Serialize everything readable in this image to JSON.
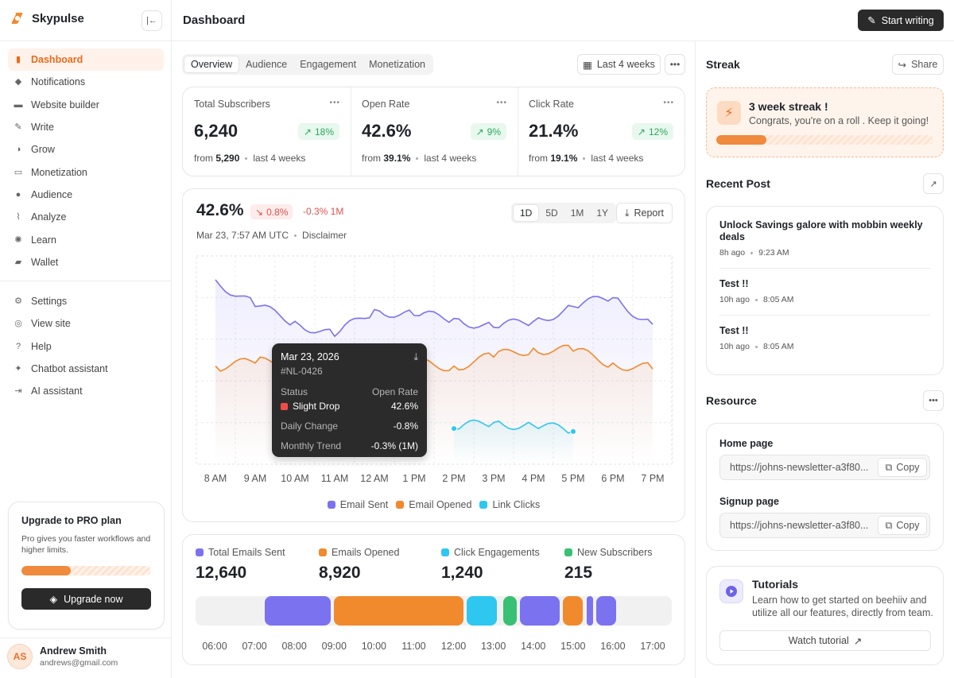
{
  "app": {
    "name": "Skypulse"
  },
  "sidebar": {
    "primary": [
      {
        "label": "Dashboard",
        "icon": "bar-chart-icon",
        "glyph": "▮",
        "active": true
      },
      {
        "label": "Notifications",
        "icon": "bell-icon",
        "glyph": "◆"
      },
      {
        "label": "Website builder",
        "icon": "monitor-icon",
        "glyph": "▬"
      },
      {
        "label": "Write",
        "icon": "pen-icon",
        "glyph": "✎"
      },
      {
        "label": "Grow",
        "icon": "grow-icon",
        "glyph": "◑"
      },
      {
        "label": "Monetization",
        "icon": "money-icon",
        "glyph": "▭"
      },
      {
        "label": "Audience",
        "icon": "users-icon",
        "glyph": "●"
      },
      {
        "label": "Analyze",
        "icon": "analyze-icon",
        "glyph": "⌇"
      },
      {
        "label": "Learn",
        "icon": "bulb-icon",
        "glyph": "✺"
      },
      {
        "label": "Wallet",
        "icon": "wallet-icon",
        "glyph": "▰"
      }
    ],
    "secondary": [
      {
        "label": "Settings",
        "icon": "gear-icon",
        "glyph": "⚙"
      },
      {
        "label": "View site",
        "icon": "globe-icon",
        "glyph": "◎"
      },
      {
        "label": "Help",
        "icon": "help-icon",
        "glyph": "?"
      },
      {
        "label": "Chatbot assistant",
        "icon": "sparkle-icon",
        "glyph": "✦"
      },
      {
        "label": "AI assistant",
        "icon": "sign-in-icon",
        "glyph": "⇥"
      }
    ],
    "upgrade": {
      "title": "Upgrade to PRO plan",
      "description": "Pro gives you faster workflows and higher limits.",
      "progress": 0.38,
      "button": "Upgrade now"
    },
    "user": {
      "initials": "AS",
      "name": "Andrew Smith",
      "email": "andrews@gmail.com"
    }
  },
  "header": {
    "title": "Dashboard",
    "start_writing": "Start writing"
  },
  "tabs": [
    "Overview",
    "Audience",
    "Engagement",
    "Monetization"
  ],
  "period": "Last 4 weeks",
  "stats": [
    {
      "label": "Total Subscribers",
      "value": "6,240",
      "change": "18%",
      "from_label": "from",
      "from": "5,290",
      "period": "last 4 weeks"
    },
    {
      "label": "Open Rate",
      "value": "42.6%",
      "change": "9%",
      "from_label": "from",
      "from": "39.1%",
      "period": "last 4 weeks"
    },
    {
      "label": "Click Rate",
      "value": "21.4%",
      "change": "12%",
      "from_label": "from",
      "from": "19.1%",
      "period": "last 4 weeks"
    }
  ],
  "chart": {
    "value": "42.6%",
    "change": "0.8%",
    "trend": "-0.3% 1M",
    "timestamp": "Mar 23, 7:57 AM UTC",
    "disclaimer": "Disclaimer",
    "ranges": [
      "1D",
      "5D",
      "1M",
      "1Y"
    ],
    "active_range": "1D",
    "report": "Report",
    "tooltip": {
      "date": "Mar 23, 2026",
      "id": "#NL-0426",
      "status_label": "Status",
      "status_col_label": "Open Rate",
      "status": "Slight Drop",
      "status_value": "42.6%",
      "daily_label": "Daily Change",
      "daily_value": "-0.8%",
      "monthly_label": "Monthly Trend",
      "monthly_value": "-0.3% (1M)"
    },
    "colors": {
      "email_sent": "#7b72f0",
      "email_opened": "#f08a2c",
      "link_clicks": "#2ec7ef",
      "status_drop": "#f04b4b"
    }
  },
  "chart_data": {
    "type": "line",
    "x": [
      "8 AM",
      "9 AM",
      "10 AM",
      "11 AM",
      "12 AM",
      "1 PM",
      "2 PM",
      "3 PM",
      "4 PM",
      "5 PM",
      "6 PM",
      "7 PM"
    ],
    "series": [
      {
        "name": "Email Sent",
        "values": [
          6.2,
          5.3,
          4.8,
          4.3,
          5.2,
          5.0,
          4.9,
          4.6,
          4.8,
          5.3,
          5.6,
          4.7
        ]
      },
      {
        "name": "Email Opened",
        "values": [
          3.3,
          3.4,
          3.5,
          3.6,
          3.5,
          3.4,
          3.3,
          3.6,
          3.9,
          3.8,
          3.4,
          3.2
        ]
      },
      {
        "name": "Link Clicks",
        "values": [
          null,
          null,
          null,
          null,
          null,
          null,
          1.2,
          1.4,
          1.3,
          1.1,
          null,
          null
        ]
      }
    ],
    "ylim": [
      0,
      7
    ],
    "grid": true,
    "legend": "bottom"
  },
  "summary": [
    {
      "label": "Total Emails Sent",
      "value": "12,640",
      "color": "#7b72f0"
    },
    {
      "label": "Emails Opened",
      "value": "8,920",
      "color": "#f08a2c"
    },
    {
      "label": "Click Engagements",
      "value": "1,240",
      "color": "#2ec7ef"
    },
    {
      "label": "New Subscribers",
      "value": "215",
      "color": "#38c172"
    }
  ],
  "timeline": {
    "labels": [
      "06:00",
      "07:00",
      "08:00",
      "09:00",
      "10:00",
      "11:00",
      "12:00",
      "13:00",
      "14:00",
      "15:00",
      "16:00",
      "17:00"
    ],
    "blocks": [
      {
        "start": "07:15",
        "end": "08:55",
        "series": "Total Emails Sent",
        "color": "#7b72f0"
      },
      {
        "start": "09:00",
        "end": "12:15",
        "series": "Emails Opened",
        "color": "#f08a2c"
      },
      {
        "start": "12:20",
        "end": "13:05",
        "series": "Click Engagements",
        "color": "#2ec7ef"
      },
      {
        "start": "13:15",
        "end": "13:35",
        "series": "New Subscribers",
        "color": "#38c172"
      },
      {
        "start": "13:40",
        "end": "14:40",
        "series": "Total Emails Sent",
        "color": "#7b72f0"
      },
      {
        "start": "14:45",
        "end": "15:15",
        "series": "Emails Opened",
        "color": "#f08a2c"
      },
      {
        "start": "15:20",
        "end": "15:30",
        "series": "Total Emails Sent",
        "color": "#7b72f0"
      },
      {
        "start": "15:35",
        "end": "16:05",
        "series": "Total Emails Sent",
        "color": "#7b72f0"
      }
    ]
  },
  "streak": {
    "title": "Streak",
    "share": "Share",
    "heading": "3 week streak !",
    "message": "Congrats, you're on a roll . Keep it going!",
    "progress": 0.23
  },
  "recent_post": {
    "title": "Recent Post",
    "posts": [
      {
        "title": "Unlock Savings galore with mobbin weekly deals",
        "age": "8h ago",
        "time": "9:23 AM"
      },
      {
        "title": "Test !!",
        "age": "10h ago",
        "time": "8:05 AM"
      },
      {
        "title": "Test !!",
        "age": "10h ago",
        "time": "8:05 AM"
      }
    ]
  },
  "resource": {
    "title": "Resource",
    "items": [
      {
        "label": "Home page",
        "url": "https://johns-newsletter-a3f80...",
        "copy": "Copy"
      },
      {
        "label": "Signup page",
        "url": "https://johns-newsletter-a3f80...",
        "copy": "Copy"
      }
    ]
  },
  "tutorials": {
    "title": "Tutorials",
    "description": "Learn how to get started on beehiiv and utilize all our features, directly from team.",
    "button": "Watch tutorial"
  }
}
